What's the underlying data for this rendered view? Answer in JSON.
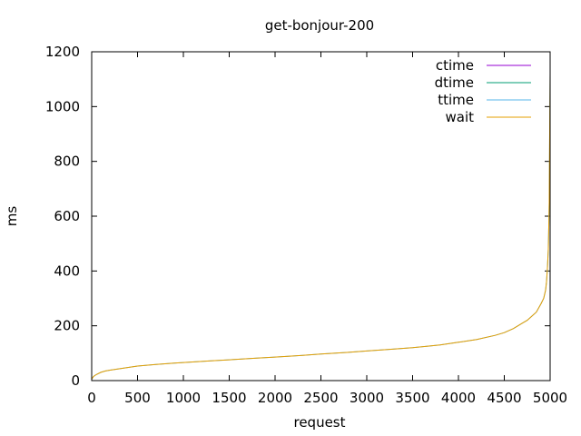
{
  "chart_data": {
    "type": "line",
    "title": "get-bonjour-200",
    "xlabel": "request",
    "ylabel": "ms",
    "xlim": [
      0,
      5000
    ],
    "ylim": [
      0,
      1200
    ],
    "xticks": [
      0,
      500,
      1000,
      1500,
      2000,
      2500,
      3000,
      3500,
      4000,
      4500,
      5000
    ],
    "yticks": [
      0,
      200,
      400,
      600,
      800,
      1000,
      1200
    ],
    "legend_position": "top-right",
    "grid": false,
    "series": [
      {
        "name": "ctime",
        "color": "#9400d3",
        "x": [
          0,
          5000
        ],
        "y": [
          0,
          0
        ]
      },
      {
        "name": "dtime",
        "color": "#009e73",
        "x": [
          0,
          5000
        ],
        "y": [
          0,
          0
        ]
      },
      {
        "name": "ttime",
        "color": "#56b4e9",
        "x": [
          0,
          20,
          50,
          100,
          150,
          200,
          300,
          400,
          500,
          700,
          900,
          1100,
          1300,
          1500,
          1800,
          2000,
          2300,
          2500,
          2800,
          3000,
          3300,
          3500,
          3800,
          4000,
          4200,
          4400,
          4500,
          4600,
          4700,
          4750,
          4800,
          4850,
          4900,
          4930,
          4950,
          4960,
          4970,
          4980,
          4985,
          4990,
          4995,
          5000
        ],
        "y": [
          5,
          15,
          22,
          30,
          35,
          38,
          43,
          48,
          53,
          59,
          64,
          68,
          72,
          76,
          82,
          86,
          92,
          97,
          103,
          108,
          115,
          120,
          130,
          140,
          150,
          165,
          175,
          190,
          210,
          220,
          235,
          250,
          280,
          300,
          330,
          360,
          410,
          480,
          560,
          650,
          900,
          1120
        ]
      },
      {
        "name": "wait",
        "color": "#e69f00",
        "x": [
          0,
          20,
          50,
          100,
          150,
          200,
          300,
          400,
          500,
          700,
          900,
          1100,
          1300,
          1500,
          1800,
          2000,
          2300,
          2500,
          2800,
          3000,
          3300,
          3500,
          3800,
          4000,
          4200,
          4400,
          4500,
          4600,
          4700,
          4750,
          4800,
          4850,
          4900,
          4930,
          4950,
          4960,
          4970,
          4980,
          4985,
          4990,
          4995,
          5000
        ],
        "y": [
          5,
          15,
          22,
          30,
          35,
          38,
          43,
          48,
          53,
          59,
          64,
          68,
          72,
          76,
          82,
          86,
          92,
          97,
          103,
          108,
          115,
          120,
          130,
          140,
          150,
          165,
          175,
          190,
          210,
          220,
          235,
          250,
          280,
          300,
          330,
          360,
          410,
          480,
          560,
          650,
          900,
          1120
        ]
      }
    ]
  }
}
